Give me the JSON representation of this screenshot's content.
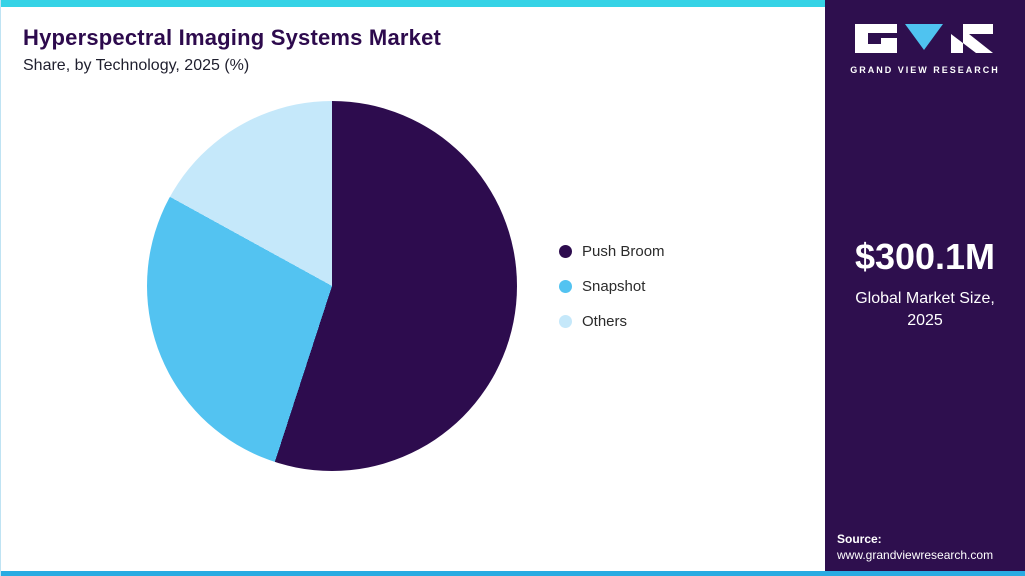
{
  "header": {
    "title": "Hyperspectral Imaging Systems Market",
    "subtitle": "Share, by Technology, 2025 (%)"
  },
  "sidebar": {
    "logo_text": "GRAND VIEW RESEARCH",
    "market_size": "$300.1M",
    "market_label_line1": "Global Market Size,",
    "market_label_line2": "2025",
    "source_label": "Source:",
    "source_url": "www.grandviewresearch.com"
  },
  "chart_data": {
    "type": "pie",
    "title": "Hyperspectral Imaging Systems Market Share, by Technology, 2025 (%)",
    "categories": [
      "Push Broom",
      "Snapshot",
      "Others"
    ],
    "values": [
      55,
      28,
      17
    ],
    "colors": [
      "#2D0C4E",
      "#53C3F1",
      "#C5E8FA"
    ],
    "start_angle_deg": 0,
    "direction": "clockwise",
    "legend_position": "right",
    "data_labels": false
  },
  "theme": {
    "accent_cyan": "#35D3E6",
    "panel_purple": "#2E0F4E",
    "bottom_line": "#29ABE2",
    "title_color": "#2D0A4D",
    "logo_triangle": "#4FC3F0"
  }
}
